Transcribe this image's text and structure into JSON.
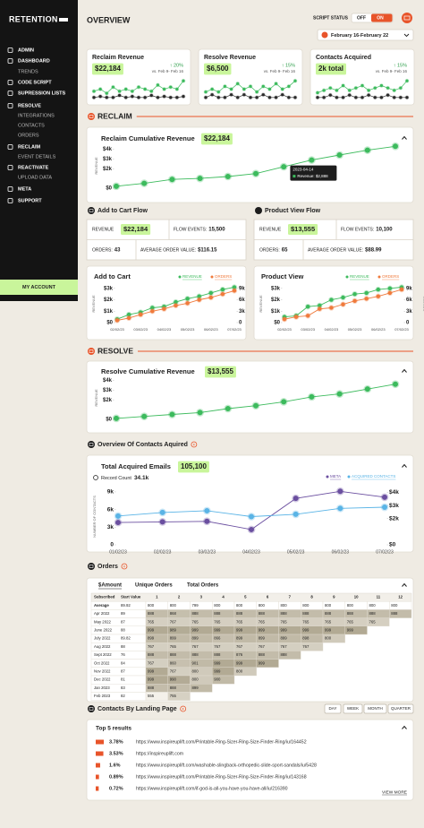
{
  "sidebar": {
    "logo": "RETENTION",
    "menu": [
      "ADMIN",
      "DASHBOARD",
      "TRENDS",
      "CODE SCRIPT",
      "SUPRESSION LISTS",
      "RESOLVE",
      "INTEGRATIONS",
      "CONTACTS",
      "ORDERS",
      "RECLAIM",
      "EVENT DETAILS",
      "REACTIVATE",
      "UPLOAD DATA",
      "META",
      "SUPPORT"
    ],
    "account": "MY ACCOUNT"
  },
  "header": {
    "title": "OVERVIEW",
    "script_status": "SCRIPT STATUS",
    "off": "OFF",
    "on": "ON",
    "date_range": "February 16-February 22"
  },
  "sections": {
    "reclaim": "RECLAIM",
    "add_to_cart_flow": "Add to Cart Flow",
    "product_view_flow": "Product View Flow",
    "resolve": "RESOLVE",
    "contacts": "Overview Of Contacts Aquired",
    "orders": "Orders",
    "landing": "Contacts By Landing Page"
  },
  "kpis": [
    {
      "title": "Reclaim Revenue",
      "value": "$22,184",
      "change": "↑ 20%",
      "compare": "vs. Feb 9- Feb 16"
    },
    {
      "title": "Resolve Revenue",
      "value": "$6,500",
      "change": "↑ 15%",
      "compare": "vs. Feb 9- Feb 16"
    },
    {
      "title": "Contacts Acquired",
      "value": "2k total",
      "change": "↑ 15%",
      "compare": "vs. Feb 9- Feb 16"
    }
  ],
  "flow_tables": [
    {
      "revenue_label": "REVENUE",
      "revenue": "$22,184",
      "events_label": "FLOW EVENTS:",
      "events": "15,500",
      "orders_label": "ORDERS:",
      "orders": "43",
      "aov_label": "AVERAGE ORDER VALUE:",
      "aov": "$116.15"
    },
    {
      "revenue_label": "REVENUE",
      "revenue": "$13,555",
      "events_label": "FLOW EVENTS:",
      "events": "10,100",
      "orders_label": "ORDERS:",
      "orders": "65",
      "aov_label": "AVERAGE ORDER VALUE:",
      "aov": "$88.99"
    }
  ],
  "chart_data": [
    {
      "type": "line",
      "series": [
        {
          "color": "#3dbb5d",
          "values": [
            4,
            5,
            3,
            6,
            4,
            5,
            4,
            6,
            5,
            4,
            7,
            5,
            6,
            5,
            9
          ]
        },
        {
          "color": "#2a2a2a",
          "values": [
            1,
            1.5,
            1,
            1,
            2,
            1,
            1.5,
            1,
            1,
            2,
            1,
            1.5,
            1,
            1,
            1.5
          ]
        }
      ]
    },
    {
      "type": "line",
      "series": [
        {
          "color": "#3dbb5d",
          "values": [
            4,
            5,
            4,
            6,
            5,
            7,
            5,
            6,
            4,
            6,
            5,
            7,
            5,
            6,
            8
          ]
        },
        {
          "color": "#2a2a2a",
          "values": [
            2,
            3,
            2,
            2,
            3,
            2,
            3,
            2,
            2,
            3,
            2,
            2,
            3,
            2,
            2
          ]
        }
      ]
    },
    {
      "type": "line",
      "series": [
        {
          "color": "#3dbb5d",
          "values": [
            4,
            5,
            6,
            5,
            7,
            5,
            6,
            7,
            5,
            6,
            7,
            6,
            5,
            6,
            9
          ]
        },
        {
          "color": "#2a2a2a",
          "values": [
            2,
            2,
            3,
            2,
            2,
            3,
            2,
            2,
            3,
            2,
            2,
            3,
            2,
            2,
            2
          ]
        }
      ]
    },
    {
      "type": "line",
      "title": "Reclaim Cumulative Revenue",
      "headline": "$22,184",
      "ylabel": "REVENUE",
      "categories": [
        null,
        null,
        null,
        null,
        null,
        null,
        null,
        null,
        null,
        null,
        null
      ],
      "series": [
        {
          "color": "#3dbb5d",
          "values": [
            200,
            500,
            900,
            1000,
            1200,
            1500,
            2200,
            2888,
            3400,
            3900,
            4300
          ]
        }
      ],
      "ylim": [
        0,
        4600
      ],
      "yticks": [
        {
          "value": 0,
          "label": "$0"
        },
        {
          "value": 2000,
          "label": "$2k"
        },
        {
          "value": 3000,
          "label": "$3k"
        },
        {
          "value": 4000,
          "label": "$4k"
        }
      ],
      "tooltip": {
        "index": 7,
        "date": "2023-04-14",
        "text": "Revenue: $2,888"
      }
    },
    {
      "type": "line",
      "title": "Add to Cart",
      "ylabel": "REVENUE",
      "y2label": "ORDERS",
      "categories": [
        "02/02/23",
        null,
        "03/02/23",
        null,
        "04/02/23",
        null,
        "05/02/23",
        null,
        "06/02/23",
        null,
        "07/02/23"
      ],
      "series": [
        {
          "name": "REVENUE",
          "color": "#3dbb5d",
          "values": [
            300,
            700,
            900,
            1300,
            1400,
            1800,
            2100,
            2300,
            2600,
            2900,
            3100
          ]
        },
        {
          "name": "ORDERS",
          "color": "#f07a3c",
          "axis": "y2",
          "values": [
            600,
            1200,
            2100,
            3000,
            3600,
            4500,
            5100,
            6000,
            6600,
            7500,
            8400
          ]
        }
      ],
      "ylim": [
        0,
        3300
      ],
      "yticks": [
        {
          "value": 0,
          "label": "$0"
        },
        {
          "value": 1000,
          "label": "$1k"
        },
        {
          "value": 2000,
          "label": "$2k"
        },
        {
          "value": 3000,
          "label": "$3k"
        }
      ],
      "y2lim": [
        0,
        9900
      ],
      "y2ticks": [
        0,
        {
          "value": 3000,
          "label": "3k"
        },
        {
          "value": 6000,
          "label": "6k"
        },
        {
          "value": 9000,
          "label": "9k"
        }
      ]
    },
    {
      "type": "line",
      "title": "Product View",
      "ylabel": "REVENUE",
      "y2label": "ORDERS",
      "categories": [
        "02/02/23",
        null,
        "03/02/23",
        null,
        "04/02/23",
        null,
        "05/02/23",
        null,
        "06/02/23",
        null,
        "07/02/23"
      ],
      "series": [
        {
          "name": "REVENUE",
          "color": "#3dbb5d",
          "values": [
            500,
            600,
            1400,
            1500,
            2000,
            2200,
            2500,
            2600,
            2900,
            3000,
            3100
          ]
        },
        {
          "name": "ORDERS",
          "color": "#f07a3c",
          "axis": "y2",
          "values": [
            900,
            1500,
            1800,
            3600,
            3900,
            4800,
            5700,
            6300,
            6900,
            7800,
            8700
          ]
        }
      ],
      "ylim": [
        0,
        3300
      ],
      "yticks": [
        {
          "value": 0,
          "label": "$0"
        },
        {
          "value": 1000,
          "label": "$1k"
        },
        {
          "value": 2000,
          "label": "$2k"
        },
        {
          "value": 3000,
          "label": "$3k"
        }
      ],
      "y2lim": [
        0,
        9900
      ],
      "y2ticks": [
        0,
        {
          "value": 3000,
          "label": "3k"
        },
        {
          "value": 6000,
          "label": "6k"
        },
        {
          "value": 9000,
          "label": "9k"
        }
      ]
    },
    {
      "type": "line",
      "title": "Resolve Cumulative Revenue",
      "headline": "$13,555",
      "ylabel": "REVENUE",
      "categories": [
        null,
        null,
        null,
        null,
        null,
        null,
        null,
        null,
        null,
        null,
        null
      ],
      "series": [
        {
          "color": "#3dbb5d",
          "values": [
            100,
            300,
            500,
            700,
            1100,
            1400,
            1800,
            2300,
            2600,
            3100,
            3600
          ]
        }
      ],
      "ylim": [
        0,
        4400
      ],
      "yticks": [
        {
          "value": 0,
          "label": "$0"
        },
        {
          "value": 2000,
          "label": "$2k"
        },
        {
          "value": 3000,
          "label": "$3k"
        },
        {
          "value": 4000,
          "label": "$4k"
        }
      ]
    },
    {
      "type": "line",
      "title": "Total Acquired Emails",
      "headline": "105,100",
      "record_label": "Record Count",
      "record": "34.1k",
      "ylabel": "NUMBER OF CONTACTS",
      "categories": [
        "01/02/23",
        "02/02/23",
        "03/02/23",
        "04/02/23",
        "05/02/23",
        "06/02/23",
        "07/02/23"
      ],
      "series": [
        {
          "name": "META",
          "color": "#6b4fa0",
          "values": [
            3800,
            3900,
            4000,
            2600,
            7900,
            9100,
            8100
          ]
        },
        {
          "name": "ACQUIRED CONTACTS",
          "color": "#5ab4e6",
          "values": [
            4900,
            5500,
            5800,
            4800,
            5200,
            6200,
            6400
          ]
        }
      ],
      "ylim": [
        0,
        9600
      ],
      "yticks": [
        0,
        {
          "value": 3000,
          "label": "3k"
        },
        {
          "value": 6000,
          "label": "6k"
        },
        {
          "value": 9000,
          "label": "9k"
        }
      ],
      "y2lim": [
        0,
        4300
      ],
      "y2ticks": [
        {
          "value": 0,
          "label": "$0"
        },
        {
          "value": 2000,
          "label": "$2k"
        },
        {
          "value": 3000,
          "label": "$3k"
        },
        {
          "value": 4000,
          "label": "$4k"
        }
      ]
    }
  ],
  "orders": {
    "tabs": [
      "$Amount",
      "Unique Orders",
      "Total Orders"
    ],
    "columns": [
      "Subscribed",
      "Start Value",
      "1",
      "2",
      "3",
      "4",
      "5",
      "6",
      "7",
      "8",
      "9",
      "10",
      "11",
      "12"
    ],
    "rows": [
      {
        "subscribed": "Average",
        "start": 89.92,
        "cells": [
          800,
          800,
          799,
          800,
          800,
          800,
          800,
          800,
          800,
          800,
          800,
          800
        ]
      },
      {
        "subscribed": "Apr 2022",
        "start": 89,
        "cells": [
          888,
          868,
          888,
          888,
          888,
          888,
          888,
          888,
          888,
          888,
          888,
          888
        ]
      },
      {
        "subscribed": "May 2022",
        "start": 87,
        "cells": [
          765,
          767,
          765,
          765,
          765,
          765,
          765,
          765,
          765,
          765,
          765
        ]
      },
      {
        "subscribed": "June 2022",
        "start": 88,
        "cells": [
          999,
          989,
          999,
          999,
          999,
          999,
          999,
          999,
          999,
          999
        ]
      },
      {
        "subscribed": "July 2022",
        "start": 89.82,
        "cells": [
          899,
          899,
          899,
          866,
          899,
          899,
          899,
          898,
          800
        ]
      },
      {
        "subscribed": "Aug 2022",
        "start": 88,
        "cells": [
          767,
          765,
          767,
          767,
          767,
          767,
          767,
          767
        ]
      },
      {
        "subscribed": "Sept 2022",
        "start": 76,
        "cells": [
          888,
          888,
          888,
          888,
          876,
          888,
          888
        ]
      },
      {
        "subscribed": "Oct 2022",
        "start": 84,
        "cells": [
          767,
          860,
          901,
          999,
          999,
          999
        ]
      },
      {
        "subscribed": "Nov 2022",
        "start": 87,
        "cells": [
          999,
          767,
          800,
          999,
          800
        ]
      },
      {
        "subscribed": "Dec 2022",
        "start": 81,
        "cells": [
          999,
          990,
          800,
          900
        ]
      },
      {
        "subscribed": "Jan 2023",
        "start": 83,
        "cells": [
          888,
          888,
          899
        ]
      },
      {
        "subscribed": "Feb 2023",
        "start": 82,
        "cells": [
          555,
          755
        ]
      }
    ]
  },
  "landing": {
    "buttons": [
      "DAY",
      "WEEK",
      "MONTH",
      "QUARTER"
    ],
    "subtitle": "Top 5 results",
    "values": [
      3.78,
      3.53,
      1.6,
      0.89,
      0.72
    ],
    "value_labels": [
      "3.78%",
      "3.53%",
      "1.6%",
      "0.89%",
      "0.72%"
    ],
    "urls": [
      "https://www.inspireuplift.com/Printable-Ring-Sizer-Ring-Size-Finder-Ring/iu/164452",
      "https://inspireuplift.com",
      "https://www.inspireuplift.com/washable-slingback-orthopedic-slide-sport-sandals/iu/5428",
      "https://www.inspireuplift.com/Printable-Ring-Sizer-Ring-Size-Finder-Ring/iu/143168",
      "https://www.inspireuplift.com/if-god-is-all-you-have-you-have-all/iu/216390"
    ],
    "more": "VIEW MORE"
  }
}
